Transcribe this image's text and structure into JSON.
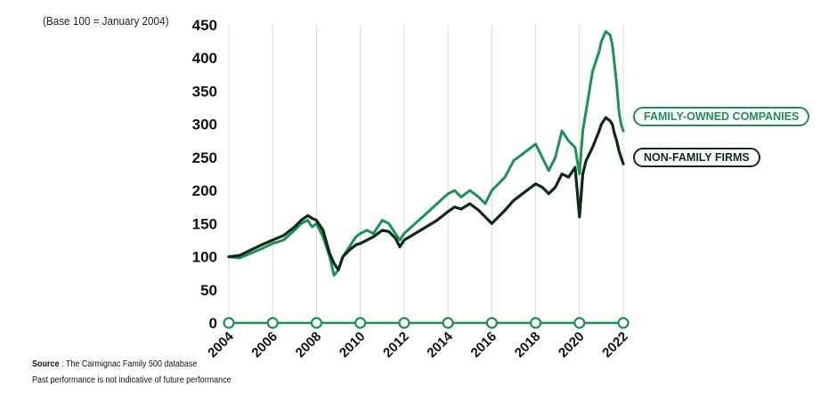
{
  "chart_data": {
    "type": "line",
    "title": "",
    "subtitle": "(Base 100 = January 2004)",
    "xlabel": "",
    "ylabel": "",
    "ylim": [
      0,
      450
    ],
    "y_ticks": [
      "0",
      "50",
      "100",
      "150",
      "200",
      "250",
      "300",
      "350",
      "400",
      "450"
    ],
    "x_ticks": [
      "2004",
      "2006",
      "2008",
      "2010",
      "2012",
      "2014",
      "2016",
      "2018",
      "2020",
      "2022"
    ],
    "xlim": [
      2004,
      2022
    ],
    "grid": "vertical",
    "legend": "right, inline labels",
    "series": [
      {
        "name": "FAMILY-OWNED COMPANIES",
        "color": "#1e8f55",
        "x": [
          2004.0,
          2004.5,
          2005.0,
          2005.5,
          2006.0,
          2006.5,
          2007.0,
          2007.3,
          2007.6,
          2007.8,
          2008.0,
          2008.3,
          2008.6,
          2008.8,
          2009.0,
          2009.2,
          2009.5,
          2009.8,
          2010.0,
          2010.3,
          2010.6,
          2011.0,
          2011.3,
          2011.6,
          2011.8,
          2012.0,
          2012.5,
          2013.0,
          2013.5,
          2014.0,
          2014.3,
          2014.6,
          2015.0,
          2015.4,
          2015.7,
          2016.0,
          2016.3,
          2016.6,
          2017.0,
          2017.4,
          2017.8,
          2018.0,
          2018.3,
          2018.6,
          2018.9,
          2019.2,
          2019.5,
          2019.8,
          2020.0,
          2020.15,
          2020.3,
          2020.6,
          2020.9,
          2021.0,
          2021.2,
          2021.4,
          2021.5,
          2021.6,
          2021.7,
          2021.8,
          2021.9,
          2022.0
        ],
        "values": [
          100,
          98,
          105,
          112,
          120,
          125,
          140,
          150,
          155,
          145,
          150,
          130,
          100,
          72,
          80,
          100,
          115,
          130,
          135,
          140,
          135,
          155,
          150,
          135,
          125,
          135,
          150,
          165,
          180,
          195,
          200,
          190,
          200,
          190,
          180,
          200,
          210,
          220,
          245,
          255,
          265,
          270,
          250,
          230,
          250,
          290,
          275,
          265,
          225,
          290,
          320,
          380,
          410,
          425,
          440,
          435,
          420,
          390,
          360,
          320,
          300,
          290
        ]
      },
      {
        "name": "NON-FAMILY FIRMS",
        "color": "#0f2b16",
        "x": [
          2004.0,
          2004.5,
          2005.0,
          2005.5,
          2006.0,
          2006.5,
          2007.0,
          2007.3,
          2007.6,
          2007.8,
          2008.0,
          2008.3,
          2008.6,
          2008.8,
          2009.0,
          2009.2,
          2009.5,
          2009.8,
          2010.0,
          2010.3,
          2010.6,
          2011.0,
          2011.3,
          2011.6,
          2011.8,
          2012.0,
          2012.5,
          2013.0,
          2013.5,
          2014.0,
          2014.3,
          2014.6,
          2015.0,
          2015.4,
          2015.7,
          2016.0,
          2016.3,
          2016.6,
          2017.0,
          2017.4,
          2017.8,
          2018.0,
          2018.3,
          2018.6,
          2018.9,
          2019.2,
          2019.5,
          2019.8,
          2020.0,
          2020.15,
          2020.3,
          2020.6,
          2020.9,
          2021.0,
          2021.2,
          2021.4,
          2021.5,
          2021.6,
          2021.7,
          2021.8,
          2021.9,
          2022.0
        ],
        "values": [
          100,
          102,
          110,
          118,
          125,
          132,
          145,
          155,
          162,
          158,
          155,
          140,
          105,
          90,
          80,
          100,
          110,
          118,
          120,
          125,
          130,
          140,
          138,
          128,
          115,
          125,
          135,
          145,
          155,
          168,
          175,
          172,
          180,
          170,
          160,
          150,
          160,
          170,
          185,
          195,
          205,
          210,
          205,
          195,
          205,
          225,
          220,
          235,
          160,
          225,
          245,
          265,
          290,
          300,
          310,
          305,
          300,
          285,
          275,
          260,
          250,
          240
        ]
      }
    ]
  },
  "footer": {
    "source_label": "Source",
    "source_text": " : The Carmignac Family 500 database",
    "disclaimer": "Past performance is not indicative of future performance"
  }
}
